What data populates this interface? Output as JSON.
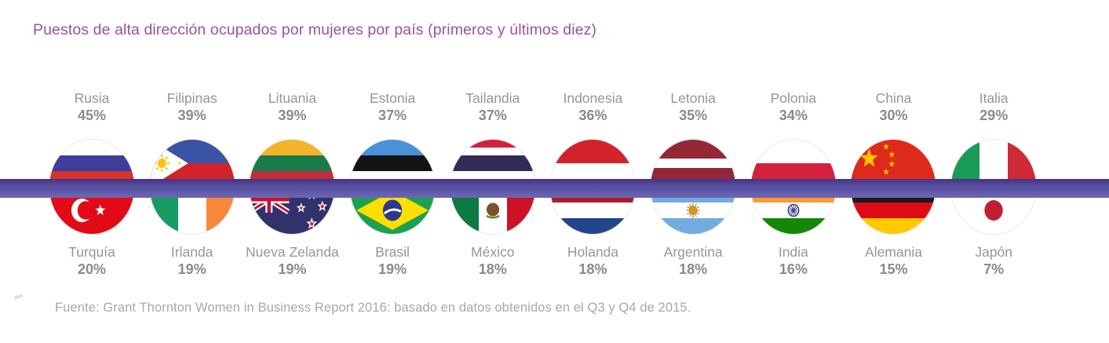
{
  "title": "Puestos de alta dirección ocupados por mujeres por país (primeros y últimos diez)",
  "source": "Fuente: Grant Thornton Women in Business Report 2016: basado en datos obtenidos en el Q3 y Q4 de 2015.",
  "colors": {
    "title_text": "#9c519c",
    "band_dark": "#46337f",
    "band_light": "#6c66b2",
    "country_name_text": "#969696",
    "percent_text": "#8a8a8a",
    "source_text": "#a8a8a8"
  },
  "chart_data": {
    "type": "table",
    "title": "Puestos de alta dirección ocupados por mujeres por país (primeros y últimos diez)",
    "source": "Fuente: Grant Thornton Women in Business Report 2016: basado en datos obtenidos en el Q3 y Q4 de 2015.",
    "top_row_group": "primeros diez",
    "bottom_row_group": "últimos diez",
    "columns": [
      {
        "top": {
          "country": "Rusia",
          "value": 45,
          "label": "45%",
          "flag": "flag-russia"
        },
        "bottom": {
          "country": "Turquía",
          "value": 20,
          "label": "20%",
          "flag": "flag-turkey"
        }
      },
      {
        "top": {
          "country": "Filipinas",
          "value": 39,
          "label": "39%",
          "flag": "flag-philippines"
        },
        "bottom": {
          "country": "Irlanda",
          "value": 19,
          "label": "19%",
          "flag": "flag-ireland"
        }
      },
      {
        "top": {
          "country": "Lituania",
          "value": 39,
          "label": "39%",
          "flag": "flag-lithuania"
        },
        "bottom": {
          "country": "Nueva Zelanda",
          "value": 19,
          "label": "19%",
          "flag": "flag-new-zealand"
        }
      },
      {
        "top": {
          "country": "Estonia",
          "value": 37,
          "label": "37%",
          "flag": "flag-estonia"
        },
        "bottom": {
          "country": "Brasil",
          "value": 19,
          "label": "19%",
          "flag": "flag-brazil"
        }
      },
      {
        "top": {
          "country": "Tailandia",
          "value": 37,
          "label": "37%",
          "flag": "flag-thailand"
        },
        "bottom": {
          "country": "México",
          "value": 18,
          "label": "18%",
          "flag": "flag-mexico"
        }
      },
      {
        "top": {
          "country": "Indonesia",
          "value": 36,
          "label": "36%",
          "flag": "flag-indonesia"
        },
        "bottom": {
          "country": "Holanda",
          "value": 18,
          "label": "18%",
          "flag": "flag-netherlands"
        }
      },
      {
        "top": {
          "country": "Letonia",
          "value": 35,
          "label": "35%",
          "flag": "flag-latvia"
        },
        "bottom": {
          "country": "Argentina",
          "value": 18,
          "label": "18%",
          "flag": "flag-argentina"
        }
      },
      {
        "top": {
          "country": "Polonia",
          "value": 34,
          "label": "34%",
          "flag": "flag-poland"
        },
        "bottom": {
          "country": "India",
          "value": 16,
          "label": "16%",
          "flag": "flag-india"
        }
      },
      {
        "top": {
          "country": "China",
          "value": 30,
          "label": "30%",
          "flag": "flag-china"
        },
        "bottom": {
          "country": "Alemania",
          "value": 15,
          "label": "15%",
          "flag": "flag-germany"
        }
      },
      {
        "top": {
          "country": "Italia",
          "value": 29,
          "label": "29%",
          "flag": "flag-italy"
        },
        "bottom": {
          "country": "Japón",
          "value": 7,
          "label": "7%",
          "flag": "flag-japan"
        }
      }
    ]
  }
}
